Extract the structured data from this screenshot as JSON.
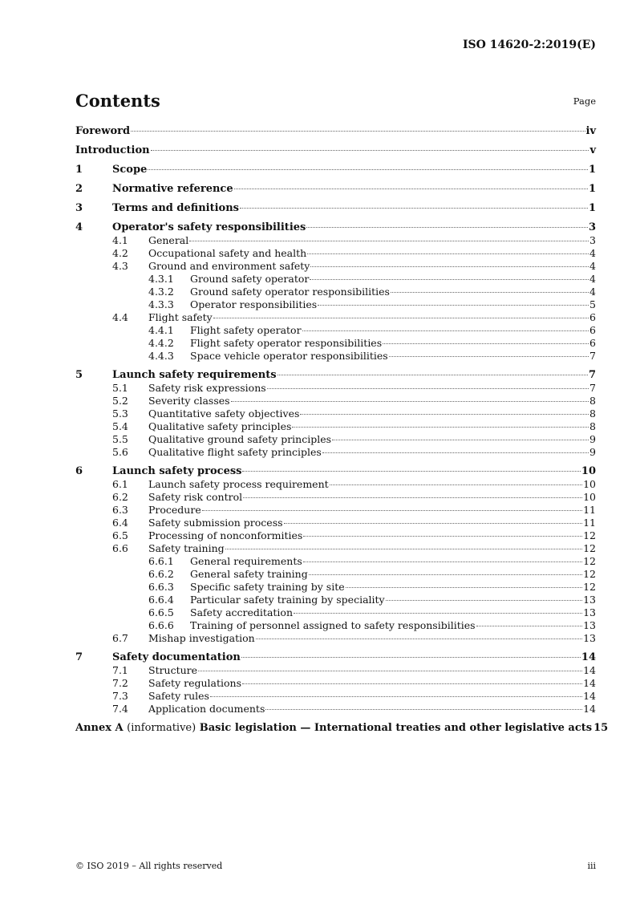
{
  "header": {
    "doc_id": "ISO 14620-2:2019(E)"
  },
  "title": "Contents",
  "page_label": "Page",
  "entries": [
    {
      "level": 0,
      "num": "",
      "title": "Foreword",
      "page": "iv"
    },
    {
      "level": 0,
      "num": "",
      "title": "Introduction",
      "page": "v"
    },
    {
      "level": 0,
      "num": "1",
      "title": "Scope",
      "page": "1"
    },
    {
      "level": 0,
      "num": "2",
      "title": "Normative reference",
      "page": "1"
    },
    {
      "level": 0,
      "num": "3",
      "title": "Terms and definitions",
      "page": "1"
    },
    {
      "level": 0,
      "num": "4",
      "title": "Operator's safety responsibilities",
      "page": "3"
    },
    {
      "level": 1,
      "num": "4.1",
      "title": "General",
      "page": "3"
    },
    {
      "level": 1,
      "num": "4.2",
      "title": "Occupational safety and health",
      "page": "4"
    },
    {
      "level": 1,
      "num": "4.3",
      "title": "Ground and environment safety",
      "page": "4"
    },
    {
      "level": 2,
      "num": "4.3.1",
      "title": "Ground safety operator",
      "page": "4"
    },
    {
      "level": 2,
      "num": "4.3.2",
      "title": "Ground safety operator responsibilities",
      "page": "4"
    },
    {
      "level": 2,
      "num": "4.3.3",
      "title": "Operator responsibilities",
      "page": "5"
    },
    {
      "level": 1,
      "num": "4.4",
      "title": "Flight safety",
      "page": "6"
    },
    {
      "level": 2,
      "num": "4.4.1",
      "title": "Flight safety operator",
      "page": "6"
    },
    {
      "level": 2,
      "num": "4.4.2",
      "title": "Flight safety operator responsibilities",
      "page": "6"
    },
    {
      "level": 2,
      "num": "4.4.3",
      "title": "Space vehicle operator responsibilities",
      "page": "7"
    },
    {
      "level": 0,
      "num": "5",
      "title": "Launch safety requirements",
      "page": "7"
    },
    {
      "level": 1,
      "num": "5.1",
      "title": "Safety risk expressions",
      "page": "7"
    },
    {
      "level": 1,
      "num": "5.2",
      "title": "Severity classes",
      "page": "8"
    },
    {
      "level": 1,
      "num": "5.3",
      "title": "Quantitative safety objectives",
      "page": "8"
    },
    {
      "level": 1,
      "num": "5.4",
      "title": "Qualitative safety principles",
      "page": "8"
    },
    {
      "level": 1,
      "num": "5.5",
      "title": "Qualitative ground safety principles",
      "page": "9"
    },
    {
      "level": 1,
      "num": "5.6",
      "title": "Qualitative flight safety principles",
      "page": "9"
    },
    {
      "level": 0,
      "num": "6",
      "title": "Launch safety process",
      "page": "10"
    },
    {
      "level": 1,
      "num": "6.1",
      "title": "Launch safety process requirement",
      "page": "10"
    },
    {
      "level": 1,
      "num": "6.2",
      "title": "Safety risk control",
      "page": "10"
    },
    {
      "level": 1,
      "num": "6.3",
      "title": "Procedure",
      "page": "11"
    },
    {
      "level": 1,
      "num": "6.4",
      "title": "Safety submission process",
      "page": "11"
    },
    {
      "level": 1,
      "num": "6.5",
      "title": "Processing of nonconformities",
      "page": "12"
    },
    {
      "level": 1,
      "num": "6.6",
      "title": "Safety training",
      "page": "12"
    },
    {
      "level": 2,
      "num": "6.6.1",
      "title": "General requirements",
      "page": "12"
    },
    {
      "level": 2,
      "num": "6.6.2",
      "title": "General safety training",
      "page": "12"
    },
    {
      "level": 2,
      "num": "6.6.3",
      "title": "Specific safety training by site",
      "page": "12"
    },
    {
      "level": 2,
      "num": "6.6.4",
      "title": "Particular safety training by speciality",
      "page": "13"
    },
    {
      "level": 2,
      "num": "6.6.5",
      "title": "Safety accreditation",
      "page": "13"
    },
    {
      "level": 2,
      "num": "6.6.6",
      "title": "Training of personnel assigned to safety responsibilities",
      "page": "13"
    },
    {
      "level": 1,
      "num": "6.7",
      "title": "Mishap investigation",
      "page": "13"
    },
    {
      "level": 0,
      "num": "7",
      "title": "Safety documentation",
      "page": "14"
    },
    {
      "level": 1,
      "num": "7.1",
      "title": "Structure",
      "page": "14"
    },
    {
      "level": 1,
      "num": "7.2",
      "title": "Safety regulations",
      "page": "14"
    },
    {
      "level": 1,
      "num": "7.3",
      "title": "Safety rules",
      "page": "14"
    },
    {
      "level": 1,
      "num": "7.4",
      "title": "Application documents",
      "page": "14"
    },
    {
      "level": 0,
      "num": "",
      "title": "Annex A",
      "title_note": "(informative)",
      "title_rest": "Basic legislation — International treaties and other legislative acts",
      "page": "15"
    }
  ],
  "footer": {
    "copyright": "© ISO 2019 – All rights reserved",
    "page": "iii"
  }
}
